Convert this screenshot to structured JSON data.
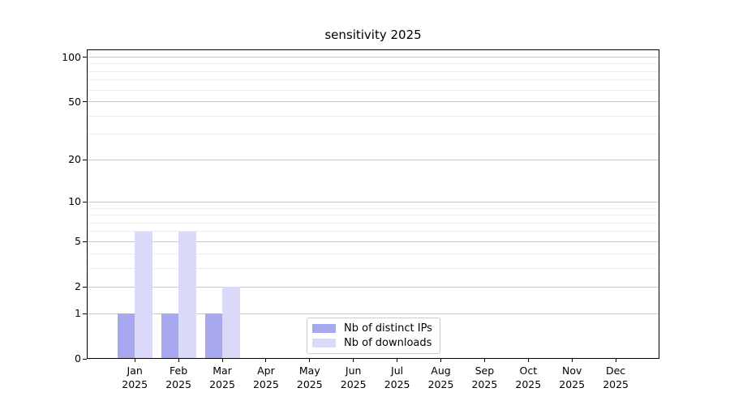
{
  "chart_data": {
    "type": "bar",
    "title": "sensitivity 2025",
    "categories": [
      "Jan",
      "Feb",
      "Mar",
      "Apr",
      "May",
      "Jun",
      "Jul",
      "Aug",
      "Sep",
      "Oct",
      "Nov",
      "Dec"
    ],
    "category_year": "2025",
    "series": [
      {
        "name": "Nb of distinct IPs",
        "color": "#a8a8f0",
        "values": [
          1,
          1,
          1,
          0,
          0,
          0,
          0,
          0,
          0,
          0,
          0,
          0
        ]
      },
      {
        "name": "Nb of downloads",
        "color": "#dadaf8",
        "values": [
          6,
          6,
          2,
          0,
          0,
          0,
          0,
          0,
          0,
          0,
          0,
          0
        ]
      }
    ],
    "y_axis": {
      "scale": "log10(value+1)",
      "major_ticks": [
        0,
        1,
        2,
        5,
        10,
        20,
        50,
        100
      ],
      "minor_gridlines": [
        3,
        4,
        6,
        7,
        8,
        9,
        30,
        40,
        60,
        70,
        80,
        90
      ],
      "range": [
        0,
        100
      ]
    },
    "grid": "on",
    "legend_position": "bottom-center",
    "colors": {
      "major_grid": "#c9c9c9",
      "minor_grid": "#ececec",
      "axis": "#000000",
      "text": "#000000",
      "background": "#ffffff"
    }
  }
}
